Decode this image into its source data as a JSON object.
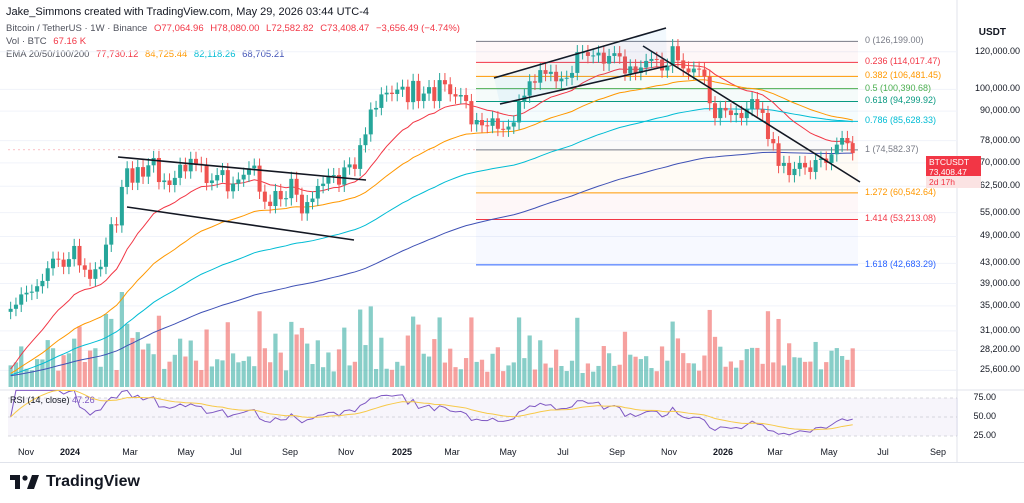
{
  "header": {
    "creator": "Jake_Simmons created with TradingView.com, May 29, 2026 03:44 UTC-4",
    "symbol": "Bitcoin / TetherUS · 1W · Binance",
    "ohlc": {
      "o": "O77,064.96",
      "h": "H78,080.00",
      "l": "L72,582.82",
      "c": "C73,408.47",
      "chg": "−3,656.49 (−4.74%)"
    },
    "vol_label": "Vol · BTC",
    "vol_value": "67.16 K",
    "ema_label": "EMA 20/50/100/200",
    "ema_values": [
      "77,730.12",
      "84,725.44",
      "82,118.26",
      "68,705.21"
    ]
  },
  "colors": {
    "up": "#26a69a",
    "down": "#ef5350",
    "ema20": "#f23645",
    "ema50": "#ff9800",
    "ema100": "#00bcd4",
    "ema200": "#3f51b5",
    "rsi": "#7e57c2"
  },
  "unit": "USDT",
  "price_tag": {
    "symbol": "BTCUSDT",
    "price": "73,408.47",
    "countdown": "2d 17h"
  },
  "price_axis": [
    "120,000.00",
    "100,000.00",
    "90,000.00",
    "78,000.00",
    "70,000.00",
    "62,500.00",
    "55,000.00",
    "49,000.00",
    "43,000.00",
    "39,000.00",
    "35,000.00",
    "31,000.00",
    "28,200.00",
    "25,600.00"
  ],
  "rsi_axis": [
    "75.00",
    "50.00",
    "25.00"
  ],
  "rsi_label": "RSI (14, close)",
  "rsi_value": "47.26",
  "fib_levels": [
    {
      "label": "0 (126,199.00)",
      "price": 126199,
      "color": "#787b86"
    },
    {
      "label": "0.236 (114,017.47)",
      "price": 114017.47,
      "color": "#f23645"
    },
    {
      "label": "0.382 (106,481.45)",
      "price": 106481.45,
      "color": "#ff9800"
    },
    {
      "label": "0.5 (100,390.68)",
      "price": 100390.68,
      "color": "#4caf50"
    },
    {
      "label": "0.618 (94,299.92)",
      "price": 94299.92,
      "color": "#089981"
    },
    {
      "label": "0.786 (85,628.33)",
      "price": 85628.33,
      "color": "#00bcd4"
    },
    {
      "label": "1 (74,582.37)",
      "price": 74582.37,
      "color": "#787b86"
    },
    {
      "label": "1.272 (60,542.64)",
      "price": 60542.64,
      "color": "#ff9800"
    },
    {
      "label": "1.414 (53,213.08)",
      "price": 53213.08,
      "color": "#f23645"
    },
    {
      "label": "1.618 (42,683.29)",
      "price": 42683.29,
      "color": "#2962ff"
    }
  ],
  "time_axis": [
    {
      "label": "Nov",
      "bold": false
    },
    {
      "label": "2024",
      "bold": true
    },
    {
      "label": "Mar",
      "bold": false
    },
    {
      "label": "May",
      "bold": false
    },
    {
      "label": "Jul",
      "bold": false
    },
    {
      "label": "Sep",
      "bold": false
    },
    {
      "label": "Nov",
      "bold": false
    },
    {
      "label": "2025",
      "bold": true
    },
    {
      "label": "Mar",
      "bold": false
    },
    {
      "label": "May",
      "bold": false
    },
    {
      "label": "Jul",
      "bold": false
    },
    {
      "label": "Sep",
      "bold": false
    },
    {
      "label": "Nov",
      "bold": false
    },
    {
      "label": "2026",
      "bold": true
    },
    {
      "label": "Mar",
      "bold": false
    },
    {
      "label": "May",
      "bold": false
    },
    {
      "label": "Jul",
      "bold": false
    },
    {
      "label": "Sep",
      "bold": false
    }
  ],
  "footer": {
    "brand": "TradingView"
  },
  "chart_data": {
    "type": "candlestick",
    "interval": "1W",
    "scale": "log",
    "date_range": [
      "2023-10-30",
      "2026-05-25"
    ],
    "closes": [
      34500,
      35200,
      37000,
      37300,
      37500,
      38500,
      39500,
      42000,
      44000,
      43800,
      42300,
      43900,
      46800,
      42600,
      41700,
      39900,
      41800,
      42300,
      47100,
      52000,
      51700,
      62300,
      68200,
      63600,
      68600,
      65500,
      69200,
      71700,
      63800,
      64300,
      62900,
      65100,
      69400,
      67200,
      71400,
      69700,
      69300,
      63500,
      64300,
      66000,
      67600,
      61000,
      63300,
      64600,
      66100,
      68200,
      69100,
      60900,
      58000,
      56800,
      61100,
      58700,
      59000,
      64800,
      60000,
      54800,
      57900,
      58900,
      62600,
      63300,
      65800,
      66000,
      63000,
      68500,
      69500,
      68000,
      76300,
      80400,
      90700,
      91400,
      97600,
      98400,
      97800,
      99900,
      101300,
      94000,
      104200,
      94500,
      98000,
      101100,
      94500,
      104600,
      102500,
      97700,
      96600,
      97300,
      94500,
      84400,
      86200,
      84000,
      83800,
      86900,
      82600,
      82300,
      83500,
      85200,
      94300,
      97000,
      104000,
      103300,
      109800,
      107800,
      108900,
      104000,
      105400,
      105800,
      108300,
      119800,
      119800,
      117600,
      117900,
      119500,
      113300,
      117600,
      119200,
      117300,
      108000,
      111800,
      108300,
      111200,
      114800,
      115900,
      115500,
      109600,
      112200,
      123300,
      115100,
      110700,
      108600,
      110600,
      110100,
      106400,
      93500,
      87000,
      91400,
      90300,
      88300,
      89200,
      87000,
      91000,
      95400,
      90800,
      89200,
      78600,
      77000,
      69000,
      70000,
      66000,
      68000,
      70000,
      68500,
      67000,
      71000,
      71500,
      70000,
      73000,
      76500,
      79000,
      77000,
      73408
    ],
    "fib_retracement": {
      "from": 126199,
      "to": 74582.37
    },
    "last": {
      "open": 77064.96,
      "high": 78080.0,
      "low": 72582.82,
      "close": 73408.47,
      "change": -3656.49,
      "change_pct": -4.74
    },
    "ema": {
      "20": 77730.12,
      "50": 84725.44,
      "100": 82118.26,
      "200": 68705.21
    },
    "rsi": {
      "period": 14,
      "value": 47.26,
      "ylim": [
        25,
        75
      ]
    },
    "volume_last": "67.16 K"
  }
}
